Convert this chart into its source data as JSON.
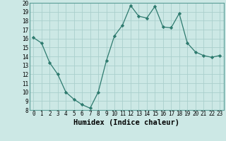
{
  "x": [
    0,
    1,
    2,
    3,
    4,
    5,
    6,
    7,
    8,
    9,
    10,
    11,
    12,
    13,
    14,
    15,
    16,
    17,
    18,
    19,
    20,
    21,
    22,
    23
  ],
  "y": [
    16.1,
    15.5,
    13.3,
    12.0,
    10.0,
    9.2,
    8.6,
    8.2,
    10.0,
    13.5,
    16.3,
    17.5,
    19.7,
    18.5,
    18.3,
    19.6,
    17.3,
    17.2,
    18.8,
    15.5,
    14.5,
    14.1,
    13.9,
    14.1
  ],
  "line_color": "#2d7a6e",
  "marker": "D",
  "marker_size": 2.2,
  "bg_color": "#cce8e5",
  "grid_color": "#aacfcc",
  "xlabel": "Humidex (Indice chaleur)",
  "ylim": [
    8,
    20
  ],
  "xlim": [
    -0.5,
    23.5
  ],
  "yticks": [
    8,
    9,
    10,
    11,
    12,
    13,
    14,
    15,
    16,
    17,
    18,
    19,
    20
  ],
  "xticks": [
    0,
    1,
    2,
    3,
    4,
    5,
    6,
    7,
    8,
    9,
    10,
    11,
    12,
    13,
    14,
    15,
    16,
    17,
    18,
    19,
    20,
    21,
    22,
    23
  ],
  "tick_labelsize": 5.5,
  "xlabel_fontsize": 7.5
}
